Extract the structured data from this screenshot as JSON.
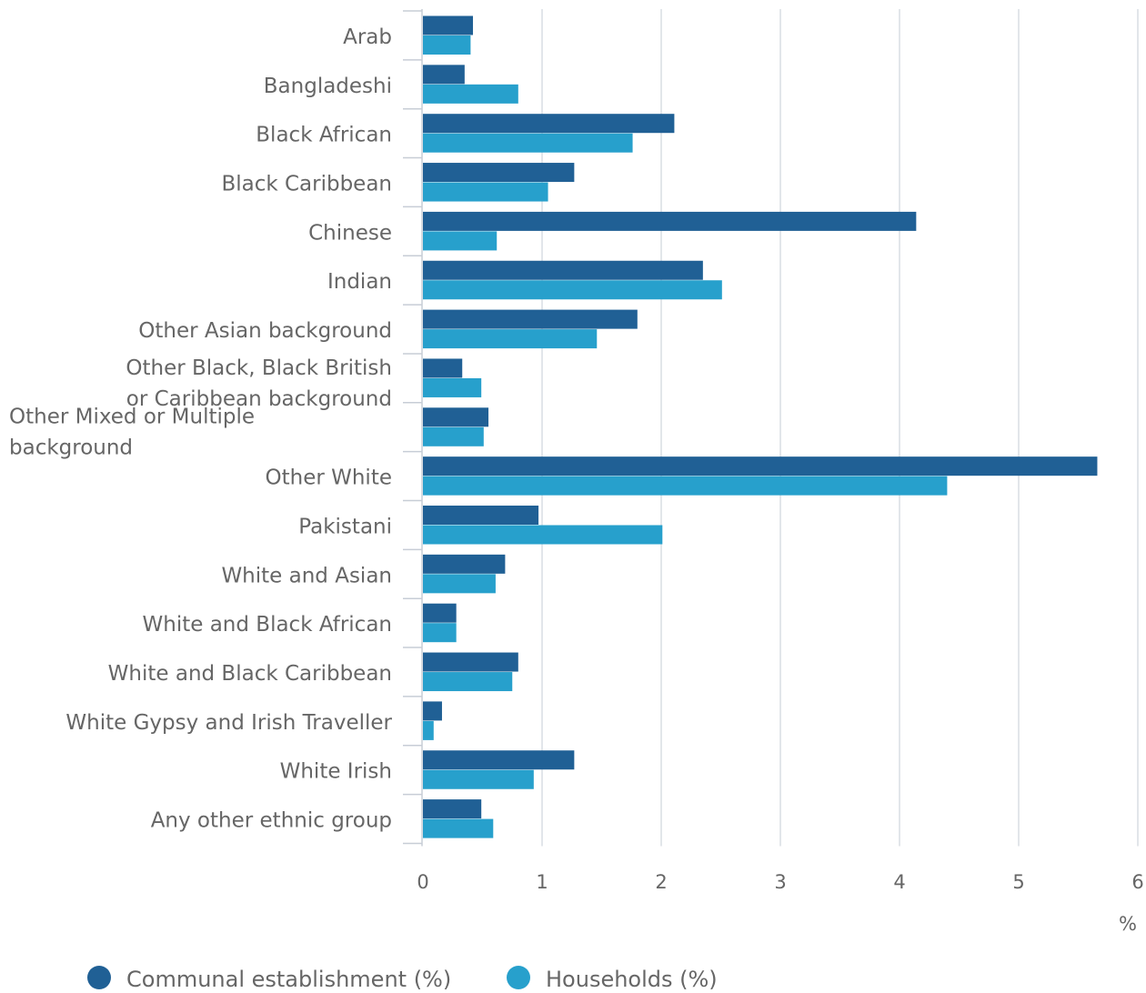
{
  "chart_data": {
    "type": "bar",
    "orientation": "horizontal",
    "categories": [
      "Arab",
      "Bangladeshi",
      "Black African",
      "Black Caribbean",
      "Chinese",
      "Indian",
      "Other Asian background",
      "Other Black, Black British or Caribbean background",
      "Other Mixed or Multiple background",
      "Other White",
      "Pakistani",
      "White and Asian",
      "White and Black African",
      "White and Black Caribbean",
      "White Gypsy and Irish Traveller",
      "White Irish",
      "Any other ethnic group"
    ],
    "category_label_lines": [
      [
        "Arab"
      ],
      [
        "Bangladeshi"
      ],
      [
        "Black African"
      ],
      [
        "Black Caribbean"
      ],
      [
        "Chinese"
      ],
      [
        "Indian"
      ],
      [
        "Other Asian background"
      ],
      [
        "Other Black, Black British",
        "or Caribbean background"
      ],
      [
        "Other Mixed or Multiple",
        "background"
      ],
      [
        "Other White"
      ],
      [
        "Pakistani"
      ],
      [
        "White and Asian"
      ],
      [
        "White and Black African"
      ],
      [
        "White and Black Caribbean"
      ],
      [
        "White Gypsy and Irish Traveller"
      ],
      [
        "White Irish"
      ],
      [
        "Any other ethnic group"
      ]
    ],
    "series": [
      {
        "name": "Communal establishment (%)",
        "color": "#206095",
        "values": [
          0.42,
          0.35,
          2.11,
          1.27,
          4.14,
          2.35,
          1.8,
          0.33,
          0.55,
          5.66,
          0.97,
          0.69,
          0.28,
          0.8,
          0.16,
          1.27,
          0.49
        ]
      },
      {
        "name": "Households (%)",
        "color": "#27a0cc",
        "values": [
          0.4,
          0.8,
          1.76,
          1.05,
          0.62,
          2.51,
          1.46,
          0.49,
          0.51,
          4.4,
          2.01,
          0.61,
          0.28,
          0.75,
          0.09,
          0.93,
          0.59
        ]
      }
    ],
    "xlim": [
      0,
      6
    ],
    "xticks": [
      0,
      1,
      2,
      3,
      4,
      5,
      6
    ],
    "xlabel": "%",
    "grid": true,
    "legend_position": "bottom-left",
    "gridline_color": "#d9dde3",
    "axis_color": "#c7cdd6"
  }
}
